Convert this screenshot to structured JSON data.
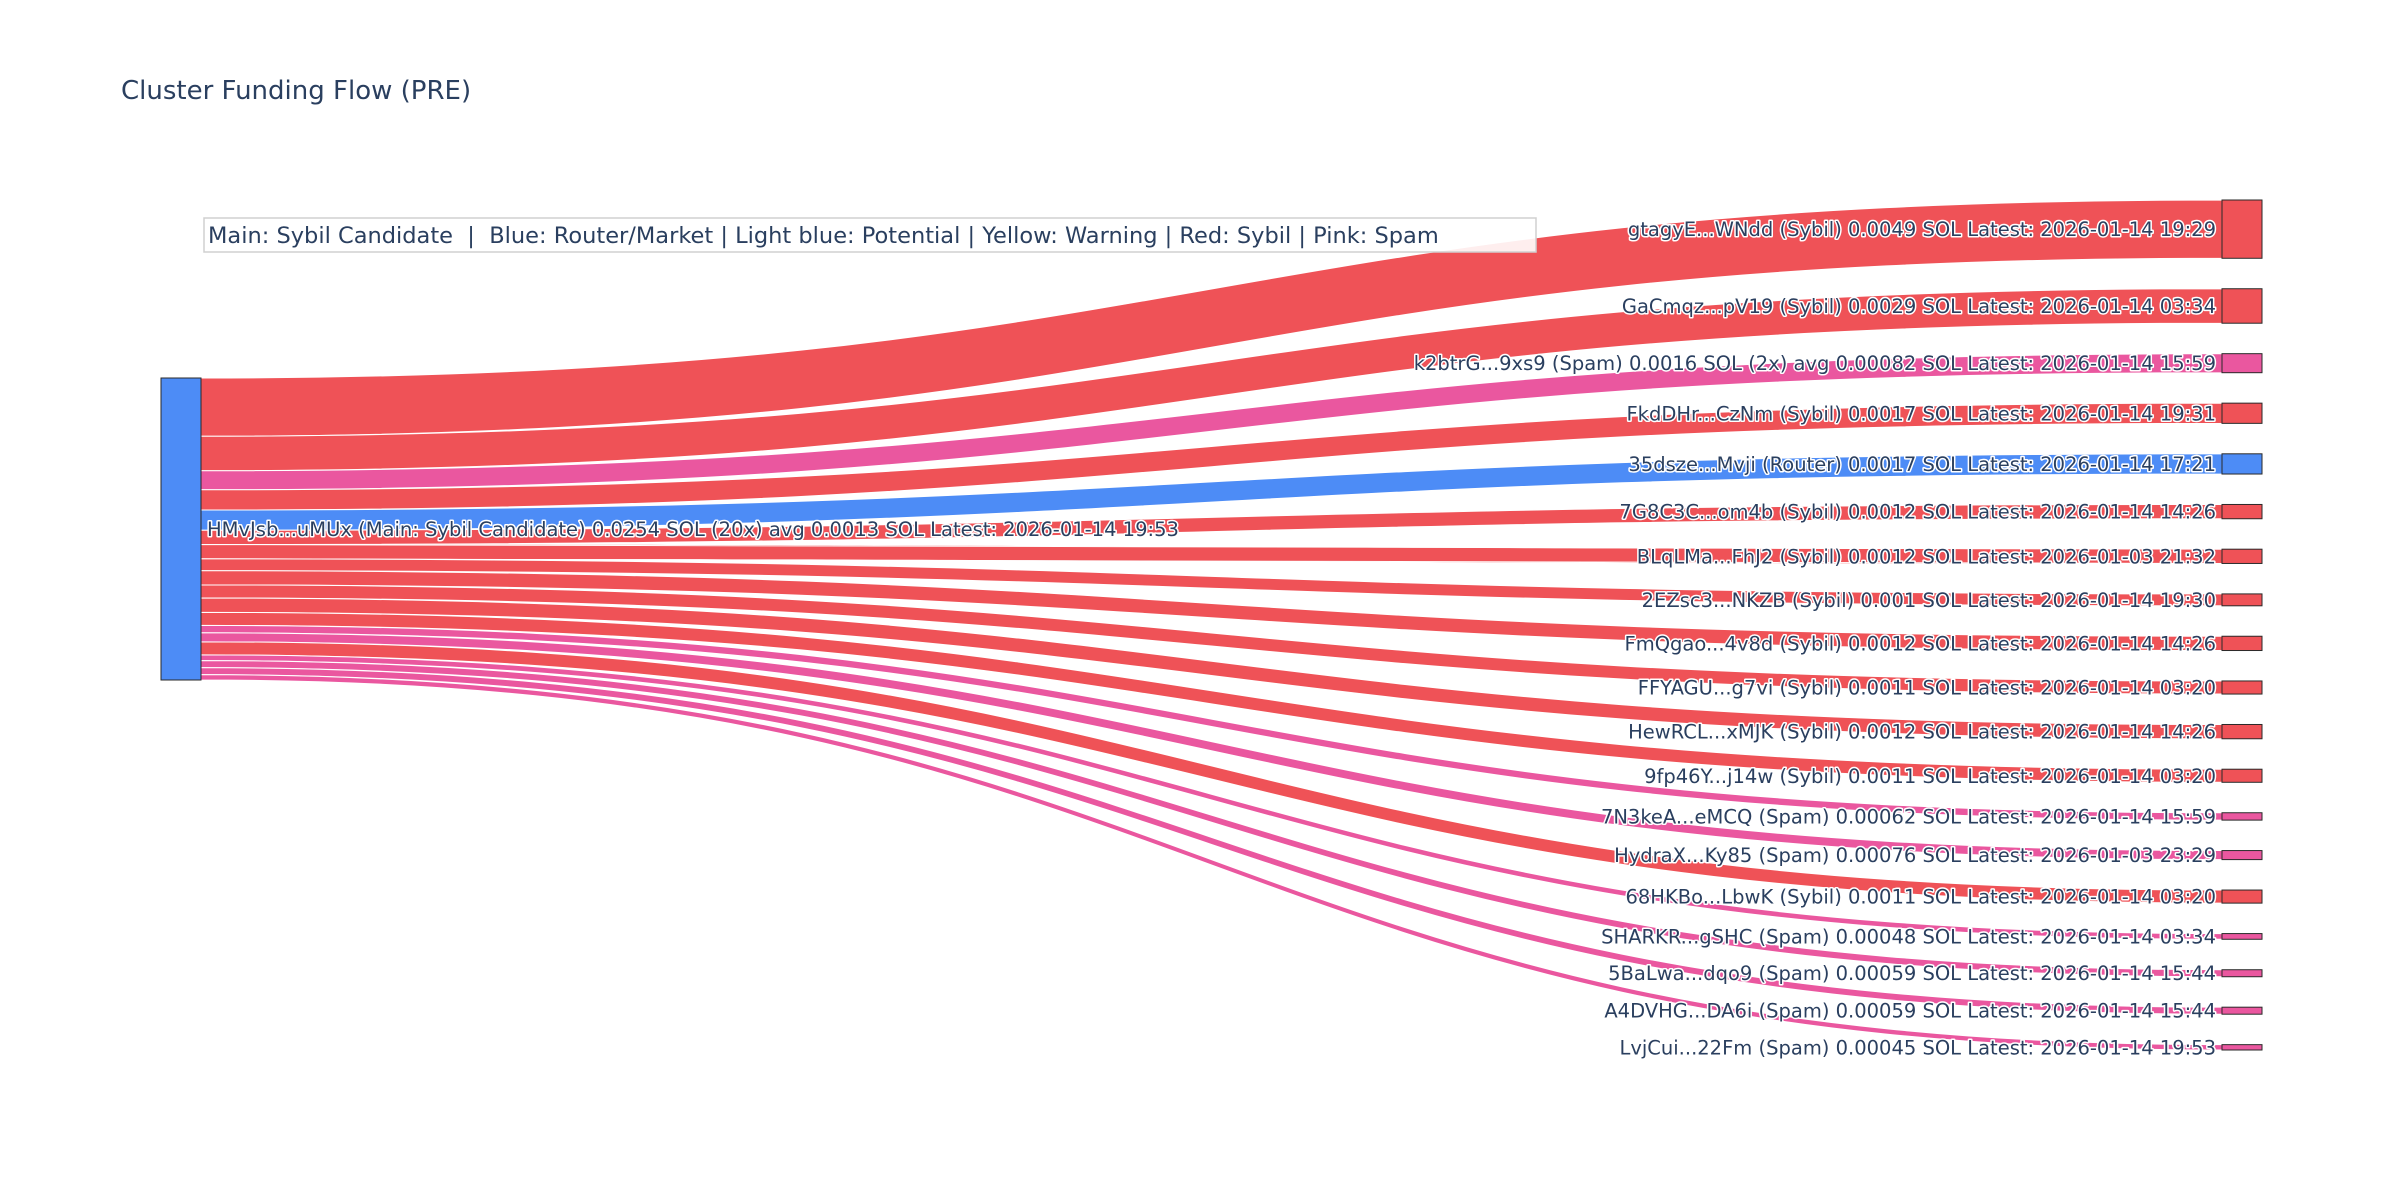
{
  "chart_data": {
    "type": "sankey",
    "title": "Cluster Funding Flow (PRE)",
    "legend_text": "Main: Sybil Candidate  |  Blue: Router/Market | Light blue: Potential | Yellow: Warning | Red: Sybil | Pink: Spam",
    "colors": {
      "main": "#4d8cf6",
      "router": "#4d8cf6",
      "sybil": "#ef5257",
      "spam": "#ea579f",
      "node_outline": "#2a2a2a"
    },
    "source": {
      "label": "HMvJsb...uMUx (Main: Sybil Candidate) 0.0254 SOL (20x) avg 0.0013 SOL Latest: 2026-01-14 19:53",
      "category": "main"
    },
    "targets": [
      {
        "label": "gtagyE...WNdd (Sybil) 0.0049 SOL Latest: 2026-01-14 19:29",
        "category": "sybil",
        "value": 0.0049
      },
      {
        "label": "GaCmqz...pV19 (Sybil) 0.0029 SOL Latest: 2026-01-14 03:34",
        "category": "sybil",
        "value": 0.0029
      },
      {
        "label": "k2btrG...9xs9 (Spam) 0.0016 SOL (2x) avg 0.00082 SOL Latest: 2026-01-14 15:59",
        "category": "spam",
        "value": 0.0016
      },
      {
        "label": "FkdDHr...CzNm (Sybil) 0.0017 SOL Latest: 2026-01-14 19:31",
        "category": "sybil",
        "value": 0.0017
      },
      {
        "label": "35dsze...Mvji (Router) 0.0017 SOL Latest: 2026-01-14 17:21",
        "category": "router",
        "value": 0.0017
      },
      {
        "label": "7G8C3C...om4b (Sybil) 0.0012 SOL Latest: 2026-01-14 14:26",
        "category": "sybil",
        "value": 0.0012
      },
      {
        "label": "BLqLMa...FhJ2 (Sybil) 0.0012 SOL Latest: 2026-01-03 21:32",
        "category": "sybil",
        "value": 0.0012
      },
      {
        "label": "2EZsc3...NKZB (Sybil) 0.001 SOL Latest: 2026-01-14 19:30",
        "category": "sybil",
        "value": 0.001
      },
      {
        "label": "FmQgao...4v8d (Sybil) 0.0012 SOL Latest: 2026-01-14 14:26",
        "category": "sybil",
        "value": 0.0012
      },
      {
        "label": "FFYAGU...g7vi (Sybil) 0.0011 SOL Latest: 2026-01-14 03:20",
        "category": "sybil",
        "value": 0.0011
      },
      {
        "label": "HewRCL...xMJK (Sybil) 0.0012 SOL Latest: 2026-01-14 14:26",
        "category": "sybil",
        "value": 0.0012
      },
      {
        "label": "9fp46Y...j14w (Sybil) 0.0011 SOL Latest: 2026-01-14 03:20",
        "category": "sybil",
        "value": 0.0011
      },
      {
        "label": "7N3keA...eMCQ (Spam) 0.00062 SOL Latest: 2026-01-14 15:59",
        "category": "spam",
        "value": 0.00062
      },
      {
        "label": "HydraX...Ky85 (Spam) 0.00076 SOL Latest: 2026-01-03 23:29",
        "category": "spam",
        "value": 0.00076
      },
      {
        "label": "68HKBo...LbwK (Sybil) 0.0011 SOL Latest: 2026-01-14 03:20",
        "category": "sybil",
        "value": 0.0011
      },
      {
        "label": "SHARKR...gSHC (Spam) 0.00048 SOL Latest: 2026-01-14 03:34",
        "category": "spam",
        "value": 0.00048
      },
      {
        "label": "5BaLwa...dqo9 (Spam) 0.00059 SOL Latest: 2026-01-14 15:44",
        "category": "spam",
        "value": 0.00059
      },
      {
        "label": "A4DVHG...DA6i (Spam) 0.00059 SOL Latest: 2026-01-14 15:44",
        "category": "spam",
        "value": 0.00059
      },
      {
        "label": "LvjCui...22Fm (Spam) 0.00045 SOL Latest: 2026-01-14 19:53",
        "category": "spam",
        "value": 0.00045
      }
    ],
    "source_link_order": [
      0,
      1,
      2,
      3,
      4,
      5,
      6,
      7,
      8,
      9,
      10,
      11,
      12,
      13,
      14,
      15,
      16,
      17,
      18
    ]
  }
}
